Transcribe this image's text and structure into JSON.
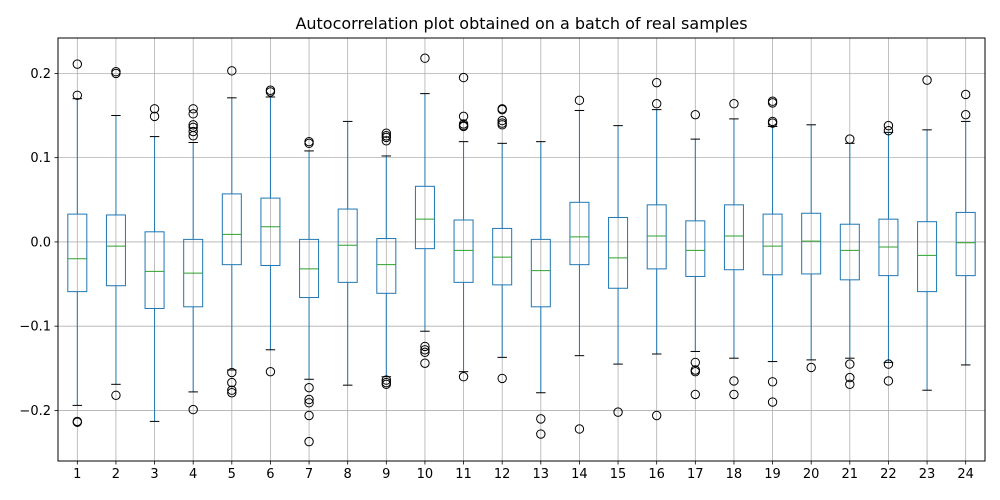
{
  "chart_data": {
    "type": "boxplot",
    "title": "Autocorrelation plot obtained on a batch of real samples",
    "xlabel": "",
    "ylabel": "",
    "categories": [
      "1",
      "2",
      "3",
      "4",
      "5",
      "6",
      "7",
      "8",
      "9",
      "10",
      "11",
      "12",
      "13",
      "14",
      "15",
      "16",
      "17",
      "18",
      "19",
      "20",
      "21",
      "22",
      "23",
      "24"
    ],
    "ylim": [
      -0.26,
      0.242
    ],
    "yticks": [
      -0.2,
      -0.1,
      0.0,
      0.1,
      0.2
    ],
    "ytick_labels": [
      "−0.2",
      "−0.1",
      "0.0",
      "0.1",
      "0.2"
    ],
    "grid": true,
    "box_color": "#1f77b4",
    "median_color": "#2ca02c",
    "boxes": [
      {
        "label": "1",
        "whislo": -0.194,
        "q1": -0.059,
        "med": -0.02,
        "q3": 0.033,
        "whishi": 0.17,
        "fliers": [
          0.211,
          0.174,
          -0.213,
          -0.214
        ]
      },
      {
        "label": "2",
        "whislo": -0.169,
        "q1": -0.052,
        "med": -0.005,
        "q3": 0.032,
        "whishi": 0.15,
        "fliers": [
          0.202,
          0.2,
          -0.182
        ]
      },
      {
        "label": "3",
        "whislo": -0.213,
        "q1": -0.079,
        "med": -0.035,
        "q3": 0.012,
        "whishi": 0.125,
        "fliers": [
          0.158,
          0.149
        ]
      },
      {
        "label": "4",
        "whislo": -0.178,
        "q1": -0.077,
        "med": -0.037,
        "q3": 0.003,
        "whishi": 0.118,
        "fliers": [
          0.158,
          0.152,
          0.139,
          0.136,
          0.131,
          0.126,
          -0.199
        ]
      },
      {
        "label": "5",
        "whislo": -0.152,
        "q1": -0.027,
        "med": 0.009,
        "q3": 0.057,
        "whishi": 0.171,
        "fliers": [
          0.203,
          -0.155,
          -0.167,
          -0.176,
          -0.179
        ]
      },
      {
        "label": "6",
        "whislo": -0.128,
        "q1": -0.028,
        "med": 0.018,
        "q3": 0.052,
        "whishi": 0.172,
        "fliers": [
          0.18,
          0.178,
          -0.154
        ]
      },
      {
        "label": "7",
        "whislo": -0.163,
        "q1": -0.066,
        "med": -0.032,
        "q3": 0.003,
        "whishi": 0.108,
        "fliers": [
          0.119,
          0.117,
          -0.173,
          -0.187,
          -0.191,
          -0.206,
          -0.237
        ]
      },
      {
        "label": "8",
        "whislo": -0.17,
        "q1": -0.048,
        "med": -0.004,
        "q3": 0.039,
        "whishi": 0.143,
        "fliers": []
      },
      {
        "label": "9",
        "whislo": -0.16,
        "q1": -0.061,
        "med": -0.027,
        "q3": 0.004,
        "whishi": 0.102,
        "fliers": [
          0.129,
          0.126,
          0.124,
          0.12,
          -0.164,
          -0.167,
          -0.169
        ]
      },
      {
        "label": "10",
        "whislo": -0.106,
        "q1": -0.008,
        "med": 0.027,
        "q3": 0.066,
        "whishi": 0.176,
        "fliers": [
          0.218,
          -0.124,
          -0.128,
          -0.131,
          -0.144
        ]
      },
      {
        "label": "11",
        "whislo": -0.154,
        "q1": -0.048,
        "med": -0.01,
        "q3": 0.026,
        "whishi": 0.119,
        "fliers": [
          0.195,
          0.149,
          0.14,
          0.138,
          0.137,
          -0.16
        ]
      },
      {
        "label": "12",
        "whislo": -0.137,
        "q1": -0.051,
        "med": -0.018,
        "q3": 0.016,
        "whishi": 0.117,
        "fliers": [
          0.158,
          0.157,
          0.144,
          0.141,
          0.139,
          -0.162
        ]
      },
      {
        "label": "13",
        "whislo": -0.179,
        "q1": -0.077,
        "med": -0.034,
        "q3": 0.003,
        "whishi": 0.119,
        "fliers": [
          -0.21,
          -0.228
        ]
      },
      {
        "label": "14",
        "whislo": -0.135,
        "q1": -0.027,
        "med": 0.006,
        "q3": 0.047,
        "whishi": 0.156,
        "fliers": [
          0.168,
          -0.222
        ]
      },
      {
        "label": "15",
        "whislo": -0.145,
        "q1": -0.055,
        "med": -0.019,
        "q3": 0.029,
        "whishi": 0.138,
        "fliers": [
          -0.202
        ]
      },
      {
        "label": "16",
        "whislo": -0.133,
        "q1": -0.032,
        "med": 0.007,
        "q3": 0.044,
        "whishi": 0.157,
        "fliers": [
          0.189,
          0.164,
          -0.206
        ]
      },
      {
        "label": "17",
        "whislo": -0.13,
        "q1": -0.041,
        "med": -0.01,
        "q3": 0.025,
        "whishi": 0.122,
        "fliers": [
          0.151,
          -0.143,
          -0.152,
          -0.154,
          -0.181
        ]
      },
      {
        "label": "18",
        "whislo": -0.138,
        "q1": -0.033,
        "med": 0.007,
        "q3": 0.044,
        "whishi": 0.146,
        "fliers": [
          0.164,
          -0.165,
          -0.181
        ]
      },
      {
        "label": "19",
        "whislo": -0.142,
        "q1": -0.039,
        "med": -0.005,
        "q3": 0.033,
        "whishi": 0.137,
        "fliers": [
          0.167,
          0.165,
          0.143,
          0.141,
          -0.166,
          -0.19
        ]
      },
      {
        "label": "20",
        "whislo": -0.14,
        "q1": -0.038,
        "med": 0.001,
        "q3": 0.034,
        "whishi": 0.139,
        "fliers": [
          -0.149
        ]
      },
      {
        "label": "21",
        "whislo": -0.138,
        "q1": -0.045,
        "med": -0.01,
        "q3": 0.021,
        "whishi": 0.117,
        "fliers": [
          0.122,
          -0.145,
          -0.161,
          -0.169
        ]
      },
      {
        "label": "22",
        "whislo": -0.143,
        "q1": -0.04,
        "med": -0.006,
        "q3": 0.027,
        "whishi": 0.13,
        "fliers": [
          0.138,
          0.132,
          -0.145,
          -0.165
        ]
      },
      {
        "label": "23",
        "whislo": -0.176,
        "q1": -0.059,
        "med": -0.016,
        "q3": 0.024,
        "whishi": 0.133,
        "fliers": [
          0.192
        ]
      },
      {
        "label": "24",
        "whislo": -0.146,
        "q1": -0.04,
        "med": -0.001,
        "q3": 0.035,
        "whishi": 0.143,
        "fliers": [
          0.175,
          0.151
        ]
      }
    ]
  }
}
